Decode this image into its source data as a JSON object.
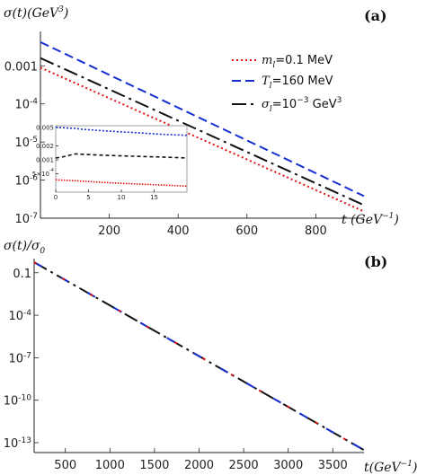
{
  "chart_data": [
    {
      "type": "line",
      "panel_tag": "(a)",
      "ylabel": "σ(t)(GeV³)",
      "ylabel_parts": {
        "main": "σ(t)(GeV",
        "sup": "3",
        "tail": ")"
      },
      "xlabel": "t (GeV⁻¹)",
      "xlabel_parts": {
        "main": "t (GeV",
        "sup": "−1",
        "tail": ")"
      },
      "xlim": [
        0,
        940
      ],
      "ylim": [
        1e-07,
        0.008
      ],
      "log_y": true,
      "grid": false,
      "x_ticks": [
        200,
        400,
        600,
        800
      ],
      "y_ticks": [
        {
          "value": 0.001,
          "label": "0.001"
        },
        {
          "value": 0.0001,
          "base": "10",
          "exp": "-4"
        },
        {
          "value": 1e-05,
          "base": "10",
          "exp": "-5"
        },
        {
          "value": 1e-06,
          "base": "10",
          "exp": "-6"
        },
        {
          "value": 1e-07,
          "base": "10",
          "exp": "-7"
        }
      ],
      "legend_position": "top-right",
      "series": [
        {
          "name": "m_l=0.1 MeV",
          "label_parts": {
            "sym": "m",
            "sub": "l",
            "rest": "=0.1 MeV"
          },
          "color": "#e01010",
          "dash": "2,3",
          "x": [
            0,
            940
          ],
          "y": [
            0.0009,
            1.5e-07
          ]
        },
        {
          "name": "T_l=160 MeV",
          "label_parts": {
            "sym": "T",
            "sub": "l",
            "rest": "=160 MeV"
          },
          "color": "#1530d0",
          "dash": "10,5",
          "x": [
            0,
            940
          ],
          "y": [
            0.0042,
            3.8e-07
          ]
        },
        {
          "name": "σ_l=10⁻³ GeV³",
          "label_parts": {
            "sym": "σ",
            "sub": "l",
            "rest": "=10",
            "sup": "−3",
            "rest2": " GeV",
            "sup2": "3"
          },
          "color": "#111111",
          "dash": "16,5,3,5",
          "x": [
            0,
            940
          ],
          "y": [
            0.0016,
            2.2e-07
          ]
        }
      ],
      "inset": {
        "xlim": [
          0,
          20
        ],
        "ylim": [
          0.0002,
          0.0055
        ],
        "x_ticks": [
          0,
          5,
          10,
          15
        ],
        "y_ticks": [
          {
            "value": 0.005,
            "label": "0.005"
          },
          {
            "value": 0.002,
            "label": "0.002"
          },
          {
            "value": 0.001,
            "label": "0.001"
          },
          {
            "value": 0.0005,
            "label": "5×10",
            "exp": "-4"
          }
        ],
        "series": [
          {
            "color": "#1530d0",
            "dash": "2,2",
            "x": [
              0,
              1,
              2,
              3,
              4,
              6,
              8,
              12,
              16,
              20
            ],
            "y": [
              0.0051,
              0.005,
              0.0049,
              0.0048,
              0.0046,
              0.0044,
              0.0042,
              0.0039,
              0.0036,
              0.0034
            ]
          },
          {
            "color": "#111111",
            "dash": "4,3",
            "x": [
              0,
              1,
              2,
              3,
              5,
              8,
              12,
              16,
              20
            ],
            "y": [
              0.0011,
              0.00115,
              0.00125,
              0.00135,
              0.0013,
              0.00125,
              0.0012,
              0.00115,
              0.0011
            ]
          },
          {
            "color": "#e01010",
            "dash": "1.5,1.5",
            "x": [
              0,
              2,
              5,
              10,
              15,
              20
            ],
            "y": [
              0.00037,
              0.00036,
              0.00034,
              0.00031,
              0.00029,
              0.00027
            ]
          }
        ]
      }
    },
    {
      "type": "line",
      "panel_tag": "(b)",
      "ylabel": "σ(t)/σ₀",
      "ylabel_parts": {
        "main": "σ(t)/σ",
        "sub": "0"
      },
      "xlabel": "t(GeV⁻¹)",
      "xlabel_parts": {
        "main": "t(GeV",
        "sup": "−1",
        "tail": ")"
      },
      "xlim": [
        150,
        3850
      ],
      "ylim": [
        2e-14,
        1
      ],
      "log_y": true,
      "grid": false,
      "x_ticks": [
        500,
        1000,
        1500,
        2000,
        2500,
        3000,
        3500
      ],
      "y_ticks": [
        {
          "value": 0.1,
          "label": "0.1"
        },
        {
          "value": 0.0001,
          "base": "10",
          "exp": "-4"
        },
        {
          "value": 1e-07,
          "base": "10",
          "exp": "-7"
        },
        {
          "value": 1e-10,
          "base": "10",
          "exp": "-10"
        },
        {
          "value": 1e-13,
          "base": "10",
          "exp": "-13"
        }
      ],
      "series": [
        {
          "color": "#111111",
          "dash": "16,5,3,5",
          "x": [
            150,
            3850
          ],
          "y": [
            0.55,
            3e-14
          ]
        },
        {
          "color": "#1530d0",
          "dash": "10,24",
          "x": [
            150,
            3850
          ],
          "y": [
            0.55,
            3e-14
          ]
        },
        {
          "color": "#e01010",
          "dash": "3,33",
          "x": [
            150,
            3850
          ],
          "y": [
            0.55,
            3e-14
          ]
        }
      ]
    }
  ]
}
